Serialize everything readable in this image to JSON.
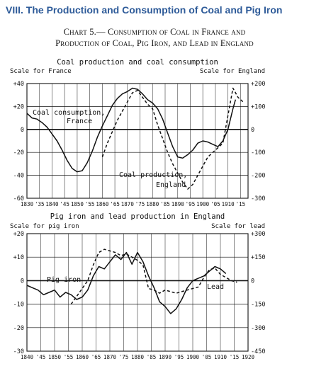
{
  "heading": "VIII.  The Production and Consumption of Coal and Pig Iron",
  "caption_line1": "Chart 5.— Consumption of Coal in France and",
  "caption_line2": "Production of Coal, Pig Iron, and Lead in England",
  "colors": {
    "heading": "#2e5b99",
    "ink": "#111111",
    "background": "#ffffff"
  },
  "chart_data": [
    {
      "type": "line",
      "title": "Coal production and coal consumption",
      "left_scale_label": "Scale for France",
      "right_scale_label": "Scale for England",
      "left_ticks": [
        "+40",
        "+20",
        "0",
        "-20",
        "-40",
        "-60"
      ],
      "right_ticks": [
        "+200",
        "+100",
        "0",
        "-100",
        "-200",
        "-300"
      ],
      "x_tick_labels": [
        "1830",
        "'35",
        "1840",
        "'45",
        "1850",
        "'55",
        "1860",
        "'65",
        "1870",
        "'75",
        "1880",
        "'85",
        "1890",
        "'95",
        "1900",
        "'05",
        "1910",
        "'15"
      ],
      "xlim": [
        1830,
        1918
      ],
      "ylim_left": [
        -60,
        40
      ],
      "ylim_right": [
        -300,
        200
      ],
      "grid": true,
      "series": [
        {
          "name": "Coal consumption, France",
          "axis": "left",
          "style": "solid",
          "x": [
            1830,
            1832,
            1834,
            1836,
            1838,
            1840,
            1842,
            1844,
            1846,
            1848,
            1850,
            1852,
            1854,
            1856,
            1858,
            1860,
            1862,
            1864,
            1866,
            1868,
            1870,
            1872,
            1874,
            1876,
            1878,
            1880,
            1882,
            1884,
            1886,
            1888,
            1890,
            1892,
            1894,
            1896,
            1898,
            1900,
            1902,
            1904,
            1906,
            1908,
            1910,
            1912,
            1913
          ],
          "y": [
            14,
            10,
            9,
            6,
            2,
            -4,
            -10,
            -18,
            -27,
            -34,
            -37,
            -36,
            -29,
            -19,
            -7,
            3,
            12,
            21,
            27,
            31,
            33,
            36,
            35,
            31,
            26,
            23,
            18,
            9,
            -3,
            -15,
            -24,
            -25,
            -22,
            -18,
            -12,
            -10,
            -11,
            -13,
            -15,
            -10,
            0,
            18,
            26
          ]
        },
        {
          "name": "Coal production, England",
          "axis": "right",
          "style": "dashed",
          "x": [
            1860,
            1862,
            1864,
            1866,
            1868,
            1870,
            1872,
            1874,
            1876,
            1878,
            1880,
            1882,
            1884,
            1886,
            1888,
            1890,
            1892,
            1894,
            1896,
            1898,
            1900,
            1902,
            1904,
            1906,
            1908,
            1910,
            1912,
            1914,
            1916
          ],
          "y": [
            -120,
            -60,
            -10,
            40,
            80,
            120,
            160,
            170,
            140,
            110,
            90,
            20,
            -40,
            -100,
            -150,
            -190,
            -230,
            -260,
            -240,
            -200,
            -160,
            -120,
            -100,
            -80,
            -60,
            60,
            180,
            140,
            120
          ]
        }
      ],
      "annotations": [
        "Coal consumption,",
        "France",
        "Coal production,",
        "England"
      ]
    },
    {
      "type": "line",
      "title": "Pig iron and lead production in England",
      "left_scale_label": "Scale for pig iron",
      "right_scale_label": "Scale for lead",
      "left_ticks": [
        "+20",
        "+10",
        "0",
        "-10",
        "-20",
        "-30"
      ],
      "right_ticks": [
        "+300",
        "+150",
        "0",
        "-150",
        "-300",
        "-450"
      ],
      "x_tick_labels": [
        "1840",
        "'45",
        "1850",
        "'55",
        "1860",
        "'65",
        "1870",
        "'75",
        "1880",
        "'85",
        "1890",
        "'95",
        "1900",
        "'05",
        "1910",
        "'15",
        "1920"
      ],
      "xlim": [
        1840,
        1920
      ],
      "ylim_left": [
        -30,
        20
      ],
      "ylim_right": [
        -450,
        300
      ],
      "grid": true,
      "series": [
        {
          "name": "Pig iron",
          "axis": "left",
          "style": "solid",
          "x": [
            1840,
            1842,
            1844,
            1846,
            1848,
            1850,
            1852,
            1854,
            1856,
            1858,
            1860,
            1862,
            1864,
            1866,
            1868,
            1870,
            1872,
            1874,
            1876,
            1878,
            1880,
            1882,
            1884,
            1886,
            1888,
            1890,
            1892,
            1894,
            1896,
            1898,
            1900,
            1902,
            1904,
            1906,
            1908,
            1910,
            1912
          ],
          "y": [
            -2,
            -3,
            -4,
            -6,
            -5,
            -4,
            -7,
            -5,
            -6,
            -8,
            -7,
            -4,
            2,
            6,
            5,
            8,
            11,
            9,
            12,
            7,
            12,
            8,
            2,
            -3,
            -9,
            -11,
            -14,
            -12,
            -8,
            -3,
            0,
            1,
            2,
            4,
            6,
            5,
            3
          ]
        },
        {
          "name": "Lead",
          "axis": "right",
          "style": "dashed",
          "x": [
            1856,
            1858,
            1860,
            1862,
            1864,
            1866,
            1868,
            1870,
            1872,
            1874,
            1876,
            1878,
            1880,
            1882,
            1884,
            1886,
            1888,
            1890,
            1892,
            1894,
            1896,
            1898,
            1900,
            1902,
            1904,
            1906,
            1908,
            1910,
            1912,
            1914,
            1916
          ],
          "y": [
            -150,
            -100,
            -50,
            0,
            100,
            180,
            200,
            190,
            180,
            160,
            170,
            150,
            130,
            100,
            -50,
            -60,
            -80,
            -60,
            -70,
            -80,
            -70,
            -60,
            -50,
            -40,
            20,
            70,
            80,
            40,
            20,
            0,
            -10
          ]
        }
      ],
      "annotations": [
        "Pig iron",
        "Lead"
      ]
    }
  ]
}
